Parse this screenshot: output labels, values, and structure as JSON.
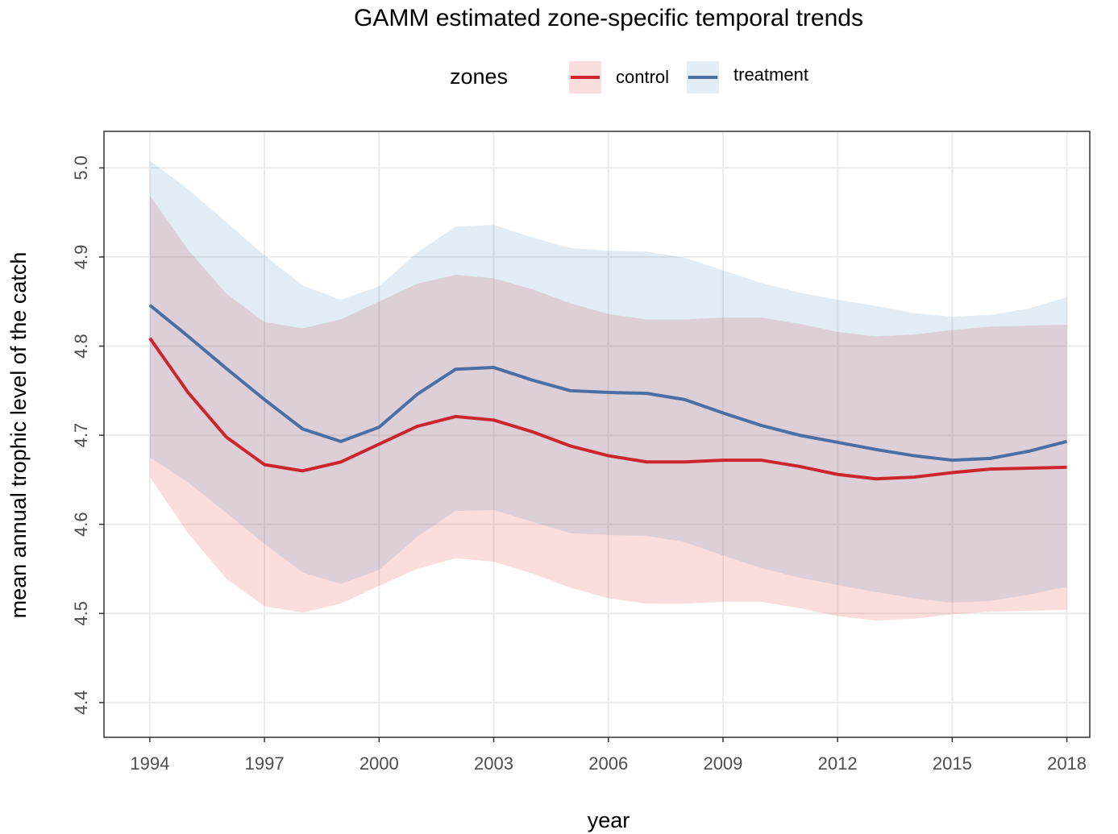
{
  "chart_data": {
    "type": "line",
    "title": "GAMM estimated zone-specific temporal trends",
    "x_label": "year",
    "y_label": "mean annual trophic level of the catch",
    "legend_title": "zones",
    "legend_position": "top",
    "grid": true,
    "x": [
      1994,
      1995,
      1996,
      1997,
      1998,
      1999,
      2000,
      2001,
      2002,
      2003,
      2004,
      2005,
      2006,
      2007,
      2008,
      2009,
      2010,
      2011,
      2012,
      2013,
      2014,
      2015,
      2016,
      2017,
      2018
    ],
    "xlim": [
      1992.8,
      2018.6
    ],
    "xticks": [
      1994,
      1997,
      2000,
      2003,
      2006,
      2009,
      2012,
      2015,
      2018
    ],
    "ylim": [
      4.361,
      5.041
    ],
    "yticks": [
      4.4,
      4.5,
      4.6,
      4.7,
      4.8,
      4.9,
      {
        "value": 5,
        "label": "5.0"
      }
    ],
    "series": [
      {
        "name": "control",
        "color": "#cb262d",
        "band_color": "#e41a1c",
        "values": [
          4.809,
          4.748,
          4.698,
          4.667,
          4.66,
          4.67,
          4.69,
          4.71,
          4.721,
          4.717,
          4.704,
          4.688,
          4.677,
          4.67,
          4.67,
          4.672,
          4.672,
          4.665,
          4.656,
          4.651,
          4.653,
          4.658,
          4.662,
          4.663,
          4.664
        ],
        "upper": [
          4.969,
          4.908,
          4.859,
          4.827,
          4.82,
          4.83,
          4.85,
          4.87,
          4.88,
          4.876,
          4.864,
          4.848,
          4.836,
          4.83,
          4.83,
          4.832,
          4.832,
          4.825,
          4.816,
          4.811,
          4.813,
          4.818,
          4.822,
          4.823,
          4.824
        ],
        "lower": [
          4.653,
          4.59,
          4.539,
          4.508,
          4.501,
          4.511,
          4.531,
          4.55,
          4.562,
          4.558,
          4.545,
          4.529,
          4.517,
          4.511,
          4.511,
          4.513,
          4.513,
          4.506,
          4.497,
          4.492,
          4.494,
          4.499,
          4.502,
          4.503,
          4.504
        ]
      },
      {
        "name": "treatment",
        "color": "#4a6fa5",
        "band_color": "#377eb8",
        "values": [
          4.846,
          4.811,
          4.775,
          4.74,
          4.707,
          4.693,
          4.709,
          4.746,
          4.774,
          4.776,
          4.762,
          4.75,
          4.748,
          4.747,
          4.74,
          4.725,
          4.711,
          4.7,
          4.692,
          4.684,
          4.677,
          4.672,
          4.674,
          4.682,
          4.693
        ],
        "upper": [
          5.008,
          4.976,
          4.939,
          4.902,
          4.868,
          4.852,
          4.867,
          4.905,
          4.934,
          4.936,
          4.922,
          4.91,
          4.907,
          4.906,
          4.899,
          4.885,
          4.871,
          4.86,
          4.852,
          4.845,
          4.837,
          4.833,
          4.835,
          4.842,
          4.855
        ],
        "lower": [
          4.675,
          4.647,
          4.613,
          4.578,
          4.546,
          4.533,
          4.549,
          4.586,
          4.615,
          4.616,
          4.603,
          4.59,
          4.588,
          4.587,
          4.58,
          4.565,
          4.551,
          4.54,
          4.532,
          4.524,
          4.517,
          4.512,
          4.514,
          4.521,
          4.53
        ]
      }
    ]
  }
}
